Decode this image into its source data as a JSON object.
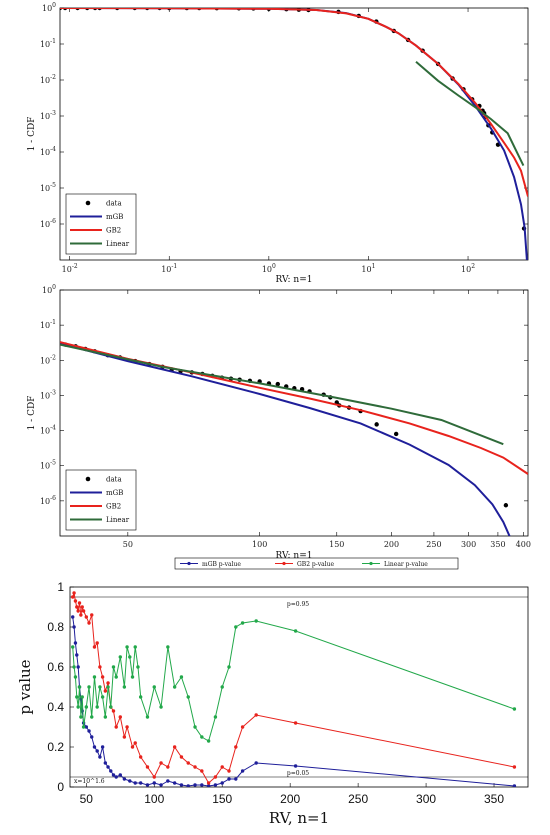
{
  "chart_data": [
    {
      "type": "line",
      "ylabel": "1 - CDF",
      "xlabel": "RV: n=1",
      "xscale": "log",
      "yscale": "log",
      "xlim": [
        0.008,
        400
      ],
      "ylim": [
        1e-07,
        1
      ],
      "xticks": [
        {
          "v": 0.01,
          "b": "10",
          "e": "-2"
        },
        {
          "v": 0.1,
          "b": "10",
          "e": "-1"
        },
        {
          "v": 1,
          "b": "10",
          "e": "0"
        },
        {
          "v": 10,
          "b": "10",
          "e": "1"
        },
        {
          "v": 100,
          "b": "10",
          "e": "2"
        }
      ],
      "yticks": [
        {
          "v": 1,
          "b": "10",
          "e": "0"
        },
        {
          "v": 0.1,
          "b": "10",
          "e": "-1"
        },
        {
          "v": 0.01,
          "b": "10",
          "e": "-2"
        },
        {
          "v": 0.001,
          "b": "10",
          "e": "-3"
        },
        {
          "v": 0.0001,
          "b": "10",
          "e": "-4"
        },
        {
          "v": 1e-05,
          "b": "10",
          "e": "-5"
        },
        {
          "v": 1e-06,
          "b": "10",
          "e": "-6"
        }
      ],
      "legend": {
        "position": "bottom-left",
        "entries": [
          "data",
          "mGB",
          "GB2",
          "Linear"
        ]
      },
      "colors": {
        "data": "#000000",
        "mGB": "#1f1f9a",
        "GB2": "#e8231d",
        "Linear": "#2f6b3a"
      },
      "series": [
        {
          "name": "mGB",
          "x": [
            0.008,
            0.1,
            1,
            3,
            6,
            10,
            15,
            20,
            30,
            50,
            80,
            120,
            170,
            230,
            290,
            340,
            370,
            390
          ],
          "y": [
            0.999,
            0.99,
            0.95,
            0.88,
            0.72,
            0.5,
            0.3,
            0.2,
            0.09,
            0.028,
            0.0075,
            0.0018,
            0.00045,
            0.00011,
            2e-05,
            3.5e-06,
            8e-07,
            1e-07
          ]
        },
        {
          "name": "GB2",
          "x": [
            0.008,
            0.1,
            1,
            3,
            6,
            10,
            15,
            20,
            30,
            50,
            80,
            120,
            170,
            230,
            290,
            340,
            400
          ],
          "y": [
            0.999,
            0.99,
            0.95,
            0.88,
            0.71,
            0.5,
            0.3,
            0.2,
            0.09,
            0.028,
            0.0078,
            0.0022,
            0.0006,
            0.00018,
            7e-05,
            3e-05,
            5.8e-06
          ]
        },
        {
          "name": "Linear",
          "x": [
            30,
            50,
            80,
            120,
            170,
            250,
            360
          ],
          "y": [
            0.032,
            0.0095,
            0.0037,
            0.0017,
            0.00082,
            0.00033,
            4.2e-05
          ]
        },
        {
          "name": "data",
          "points": [
            [
              0.008,
              1
            ],
            [
              0.009,
              1
            ],
            [
              0.012,
              1
            ],
            [
              0.015,
              1
            ],
            [
              0.018,
              1
            ],
            [
              0.02,
              1
            ],
            [
              0.03,
              1
            ],
            [
              0.045,
              1
            ],
            [
              0.06,
              1
            ],
            [
              0.08,
              1
            ],
            [
              0.1,
              0.998
            ],
            [
              0.15,
              0.996
            ],
            [
              0.2,
              0.995
            ],
            [
              0.3,
              0.99
            ],
            [
              0.5,
              0.98
            ],
            [
              0.7,
              0.97
            ],
            [
              1,
              0.95
            ],
            [
              1.5,
              0.93
            ],
            [
              2,
              0.9
            ],
            [
              2.5,
              0.88
            ],
            [
              5,
              0.78
            ],
            [
              8,
              0.6
            ],
            [
              12,
              0.42
            ],
            [
              18,
              0.23
            ],
            [
              25,
              0.13
            ],
            [
              35,
              0.065
            ],
            [
              50,
              0.028
            ],
            [
              70,
              0.011
            ],
            [
              90,
              0.0055
            ],
            [
              110,
              0.0029
            ],
            [
              130,
              0.0019
            ],
            [
              140,
              0.0014
            ],
            [
              145,
              0.0012
            ],
            [
              150,
              0.00095
            ],
            [
              160,
              0.00055
            ],
            [
              175,
              0.00035
            ],
            [
              200,
              0.00016
            ],
            [
              365,
              7.5e-07
            ]
          ]
        }
      ]
    },
    {
      "type": "line",
      "ylabel": "1 - CDF",
      "xlabel": "RV: n=1",
      "xscale": "log",
      "yscale": "log",
      "xlim": [
        35,
        410
      ],
      "ylim": [
        1e-07,
        1
      ],
      "xticks": [
        {
          "v": 50,
          "t": "50"
        },
        {
          "v": 100,
          "t": "100"
        },
        {
          "v": 150,
          "t": "150"
        },
        {
          "v": 200,
          "t": "200"
        },
        {
          "v": 250,
          "t": "250"
        },
        {
          "v": 300,
          "t": "300"
        },
        {
          "v": 350,
          "t": "350"
        },
        {
          "v": 400,
          "t": "400"
        }
      ],
      "yticks": [
        {
          "v": 1,
          "b": "10",
          "e": "0"
        },
        {
          "v": 0.1,
          "b": "10",
          "e": "-1"
        },
        {
          "v": 0.01,
          "b": "10",
          "e": "-2"
        },
        {
          "v": 0.001,
          "b": "10",
          "e": "-3"
        },
        {
          "v": 0.0001,
          "b": "10",
          "e": "-4"
        },
        {
          "v": 1e-05,
          "b": "10",
          "e": "-5"
        },
        {
          "v": 1e-06,
          "b": "10",
          "e": "-6"
        }
      ],
      "legend": {
        "position": "bottom-left",
        "entries": [
          "data",
          "mGB",
          "GB2",
          "Linear"
        ]
      },
      "colors": {
        "data": "#000000",
        "mGB": "#1f1f9a",
        "GB2": "#e8231d",
        "Linear": "#2f6b3a"
      },
      "series": [
        {
          "name": "mGB",
          "x": [
            35,
            50,
            70,
            100,
            130,
            170,
            220,
            270,
            310,
            340,
            360,
            375
          ],
          "y": [
            0.03,
            0.0095,
            0.0035,
            0.0011,
            0.00044,
            0.00016,
            4e-05,
            1.05e-05,
            2.8e-06,
            8e-07,
            2.5e-07,
            8e-08
          ]
        },
        {
          "name": "GB2",
          "x": [
            35,
            50,
            70,
            100,
            130,
            170,
            220,
            270,
            320,
            360,
            410
          ],
          "y": [
            0.033,
            0.011,
            0.0045,
            0.00165,
            0.00082,
            0.00038,
            0.00016,
            7e-05,
            3.2e-05,
            1.7e-05,
            5.8e-06
          ]
        },
        {
          "name": "Linear",
          "x": [
            35,
            60,
            100,
            150,
            200,
            260,
            360
          ],
          "y": [
            0.028,
            0.0065,
            0.0022,
            0.00085,
            0.00042,
            0.0002,
            4.1e-05
          ]
        },
        {
          "name": "data",
          "points": [
            [
              36,
              0.028
            ],
            [
              38,
              0.025
            ],
            [
              40,
              0.021
            ],
            [
              42,
              0.018
            ],
            [
              45,
              0.014
            ],
            [
              48,
              0.012
            ],
            [
              52,
              0.0095
            ],
            [
              56,
              0.0078
            ],
            [
              60,
              0.0065
            ],
            [
              63,
              0.0055
            ],
            [
              66,
              0.0049
            ],
            [
              70,
              0.0045
            ],
            [
              74,
              0.0041
            ],
            [
              78,
              0.0036
            ],
            [
              82,
              0.0032
            ],
            [
              86,
              0.003
            ],
            [
              90,
              0.0028
            ],
            [
              95,
              0.0026
            ],
            [
              100,
              0.0025
            ],
            [
              105,
              0.0022
            ],
            [
              110,
              0.0021
            ],
            [
              115,
              0.0018
            ],
            [
              120,
              0.0016
            ],
            [
              125,
              0.0015
            ],
            [
              130,
              0.0013
            ],
            [
              140,
              0.00105
            ],
            [
              145,
              0.00088
            ],
            [
              150,
              0.00063
            ],
            [
              152,
              0.00052
            ],
            [
              160,
              0.00045
            ],
            [
              170,
              0.00036
            ],
            [
              185,
              0.00015
            ],
            [
              205,
              8e-05
            ],
            [
              365,
              7.5e-07
            ]
          ]
        }
      ]
    },
    {
      "type": "line",
      "ylabel": "p value",
      "xlabel": "RV, n=1",
      "xlim": [
        38,
        375
      ],
      "ylim": [
        0,
        1
      ],
      "xticks": [
        50,
        100,
        150,
        200,
        250,
        300,
        350
      ],
      "yticks": [
        0,
        0.2,
        0.4,
        0.6,
        0.8,
        1
      ],
      "ytick_labels": [
        "0",
        "0.2",
        "0.4",
        "0.6",
        "0.8",
        "1"
      ],
      "reference_lines": [
        {
          "y": 0.95,
          "label": "p=0.95"
        },
        {
          "y": 0.05,
          "label": "p=0.05"
        }
      ],
      "annotation": "x=10^1.6",
      "legend": {
        "position": "top",
        "entries": [
          "mGB p-value",
          "GB2 p-value",
          "Linear p-value"
        ]
      },
      "colors": {
        "mGB p-value": "#1f1f9a",
        "GB2 p-value": "#e8231d",
        "Linear p-value": "#22a84a"
      },
      "series": [
        {
          "name": "mGB p-value",
          "x": [
            40,
            41,
            42,
            43,
            44,
            45,
            46,
            47,
            48,
            50,
            52,
            54,
            56,
            58,
            60,
            62,
            64,
            66,
            68,
            70,
            72,
            75,
            78,
            82,
            86,
            90,
            95,
            100,
            105,
            110,
            115,
            120,
            125,
            130,
            135,
            140,
            145,
            150,
            155,
            160,
            165,
            175,
            204,
            365
          ],
          "y": [
            0.85,
            0.8,
            0.72,
            0.66,
            0.6,
            0.5,
            0.44,
            0.38,
            0.32,
            0.3,
            0.28,
            0.25,
            0.2,
            0.18,
            0.15,
            0.2,
            0.12,
            0.1,
            0.08,
            0.06,
            0.05,
            0.06,
            0.04,
            0.03,
            0.02,
            0.02,
            0.01,
            0.02,
            0.01,
            0.03,
            0.02,
            0.01,
            0.005,
            0.01,
            0.01,
            0.005,
            0.01,
            0.02,
            0.04,
            0.04,
            0.08,
            0.12,
            0.105,
            0.005
          ]
        },
        {
          "name": "GB2 p-value",
          "x": [
            40,
            41,
            42,
            43,
            44,
            45,
            46,
            47,
            48,
            50,
            52,
            54,
            56,
            58,
            60,
            62,
            64,
            66,
            68,
            70,
            72,
            75,
            78,
            80,
            84,
            86,
            90,
            95,
            100,
            105,
            110,
            115,
            120,
            125,
            130,
            135,
            140,
            145,
            150,
            155,
            160,
            165,
            175,
            204,
            365
          ],
          "y": [
            0.95,
            0.97,
            0.93,
            0.9,
            0.88,
            0.92,
            0.86,
            0.9,
            0.88,
            0.85,
            0.82,
            0.86,
            0.7,
            0.72,
            0.6,
            0.55,
            0.48,
            0.52,
            0.4,
            0.38,
            0.3,
            0.35,
            0.25,
            0.3,
            0.2,
            0.22,
            0.15,
            0.1,
            0.05,
            0.12,
            0.1,
            0.2,
            0.15,
            0.12,
            0.1,
            0.08,
            0.02,
            0.05,
            0.1,
            0.08,
            0.2,
            0.3,
            0.36,
            0.32,
            0.1
          ]
        },
        {
          "name": "Linear p-value",
          "x": [
            40,
            41,
            42,
            43,
            44,
            45,
            46,
            47,
            48,
            50,
            52,
            54,
            56,
            58,
            60,
            62,
            64,
            66,
            68,
            70,
            72,
            75,
            78,
            80,
            82,
            84,
            86,
            88,
            90,
            95,
            100,
            105,
            110,
            115,
            120,
            125,
            130,
            135,
            140,
            145,
            150,
            155,
            160,
            165,
            175,
            204,
            365
          ],
          "y": [
            0.7,
            0.6,
            0.55,
            0.45,
            0.4,
            0.5,
            0.35,
            0.45,
            0.3,
            0.4,
            0.5,
            0.35,
            0.55,
            0.4,
            0.5,
            0.45,
            0.35,
            0.5,
            0.4,
            0.6,
            0.55,
            0.65,
            0.5,
            0.7,
            0.65,
            0.55,
            0.7,
            0.6,
            0.45,
            0.35,
            0.5,
            0.4,
            0.7,
            0.5,
            0.55,
            0.45,
            0.3,
            0.25,
            0.23,
            0.35,
            0.5,
            0.6,
            0.8,
            0.82,
            0.83,
            0.78,
            0.39
          ]
        }
      ]
    }
  ]
}
